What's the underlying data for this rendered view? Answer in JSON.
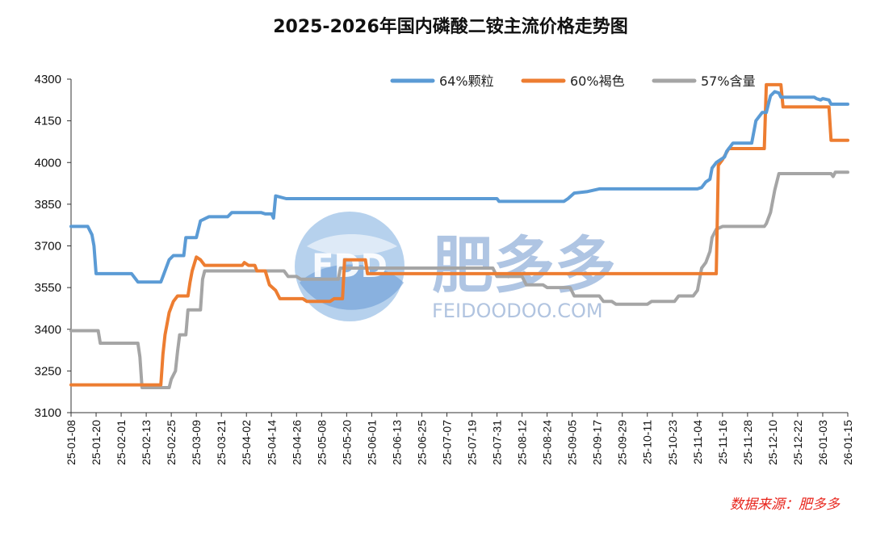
{
  "chart_data": {
    "type": "line",
    "title": "2025-2026年国内磷酸二铵主流价格走势图",
    "xlabel": "",
    "ylabel": "",
    "ylim": [
      3100,
      4300
    ],
    "yticks": [
      3100,
      3250,
      3400,
      3550,
      3700,
      3850,
      4000,
      4150,
      4300
    ],
    "x_range": [
      "25-01-08",
      "26-01-15"
    ],
    "x_ticks": [
      "25-01-08",
      "25-01-20",
      "25-02-01",
      "25-02-13",
      "25-02-25",
      "25-03-09",
      "25-03-21",
      "25-04-02",
      "25-04-14",
      "25-04-26",
      "25-05-08",
      "25-05-20",
      "25-06-01",
      "25-06-13",
      "25-06-25",
      "25-07-07",
      "25-07-19",
      "25-07-31",
      "25-08-12",
      "25-08-24",
      "25-09-05",
      "25-09-17",
      "25-09-29",
      "25-10-11",
      "25-10-23",
      "25-11-04",
      "25-11-16",
      "25-11-28",
      "25-12-10",
      "25-12-22",
      "26-01-03",
      "26-01-15"
    ],
    "grid": false,
    "legend_position": "top-right",
    "series": [
      {
        "name": "64%颗粒",
        "color": "#5b9bd5",
        "points": [
          [
            "25-01-08",
            3770
          ],
          [
            "25-01-16",
            3770
          ],
          [
            "25-01-18",
            3740
          ],
          [
            "25-01-19",
            3700
          ],
          [
            "25-01-20",
            3600
          ],
          [
            "25-02-06",
            3600
          ],
          [
            "25-02-09",
            3570
          ],
          [
            "25-02-20",
            3570
          ],
          [
            "25-02-21",
            3590
          ],
          [
            "25-02-24",
            3650
          ],
          [
            "25-02-26",
            3665
          ],
          [
            "25-03-03",
            3665
          ],
          [
            "25-03-04",
            3730
          ],
          [
            "25-03-09",
            3730
          ],
          [
            "25-03-11",
            3790
          ],
          [
            "25-03-15",
            3805
          ],
          [
            "25-03-24",
            3805
          ],
          [
            "25-03-26",
            3820
          ],
          [
            "25-04-09",
            3820
          ],
          [
            "25-04-11",
            3815
          ],
          [
            "25-04-14",
            3815
          ],
          [
            "25-04-15",
            3800
          ],
          [
            "25-04-16",
            3880
          ],
          [
            "25-04-21",
            3870
          ],
          [
            "25-07-31",
            3870
          ],
          [
            "25-08-01",
            3860
          ],
          [
            "25-09-01",
            3860
          ],
          [
            "25-09-03",
            3870
          ],
          [
            "25-09-06",
            3890
          ],
          [
            "25-09-12",
            3895
          ],
          [
            "25-09-18",
            3905
          ],
          [
            "25-11-04",
            3905
          ],
          [
            "25-11-06",
            3910
          ],
          [
            "25-11-08",
            3930
          ],
          [
            "25-11-10",
            3940
          ],
          [
            "25-11-11",
            3980
          ],
          [
            "25-11-13",
            4000
          ],
          [
            "25-11-15",
            4010
          ],
          [
            "25-11-17",
            4020
          ],
          [
            "25-11-18",
            4040
          ],
          [
            "25-11-21",
            4070
          ],
          [
            "25-11-30",
            4070
          ],
          [
            "25-12-02",
            4150
          ],
          [
            "25-12-05",
            4180
          ],
          [
            "25-12-07",
            4180
          ],
          [
            "25-12-09",
            4240
          ],
          [
            "25-12-11",
            4255
          ],
          [
            "25-12-13",
            4250
          ],
          [
            "25-12-14",
            4235
          ],
          [
            "25-12-30",
            4235
          ],
          [
            "25-12-31",
            4230
          ],
          [
            "26-01-02",
            4225
          ],
          [
            "26-01-03",
            4230
          ],
          [
            "26-01-06",
            4225
          ],
          [
            "26-01-07",
            4210
          ],
          [
            "26-01-15",
            4210
          ]
        ]
      },
      {
        "name": "60%褐色",
        "color": "#ed7d31",
        "points": [
          [
            "25-01-08",
            3200
          ],
          [
            "25-02-20",
            3200
          ],
          [
            "25-02-21",
            3310
          ],
          [
            "25-02-22",
            3380
          ],
          [
            "25-02-24",
            3460
          ],
          [
            "25-02-26",
            3500
          ],
          [
            "25-02-28",
            3520
          ],
          [
            "25-03-05",
            3520
          ],
          [
            "25-03-06",
            3570
          ],
          [
            "25-03-07",
            3610
          ],
          [
            "25-03-09",
            3660
          ],
          [
            "25-03-11",
            3650
          ],
          [
            "25-03-13",
            3630
          ],
          [
            "25-03-31",
            3630
          ],
          [
            "25-04-01",
            3640
          ],
          [
            "25-04-03",
            3630
          ],
          [
            "25-04-06",
            3630
          ],
          [
            "25-04-07",
            3610
          ],
          [
            "25-04-11",
            3610
          ],
          [
            "25-04-13",
            3560
          ],
          [
            "25-04-16",
            3540
          ],
          [
            "25-04-18",
            3510
          ],
          [
            "25-04-29",
            3510
          ],
          [
            "25-05-01",
            3500
          ],
          [
            "25-05-12",
            3500
          ],
          [
            "25-05-14",
            3510
          ],
          [
            "25-05-18",
            3510
          ],
          [
            "25-05-19",
            3650
          ],
          [
            "25-05-29",
            3650
          ],
          [
            "25-05-30",
            3600
          ],
          [
            "25-11-13",
            3600
          ],
          [
            "25-11-14",
            3990
          ],
          [
            "25-11-16",
            4010
          ],
          [
            "25-11-19",
            4050
          ],
          [
            "25-12-06",
            4050
          ],
          [
            "25-12-07",
            4280
          ],
          [
            "25-12-14",
            4280
          ],
          [
            "25-12-15",
            4200
          ],
          [
            "26-01-03",
            4200
          ],
          [
            "26-01-06",
            4200
          ],
          [
            "26-01-07",
            4080
          ],
          [
            "26-01-15",
            4080
          ]
        ]
      },
      {
        "name": "57%含量",
        "color": "#a5a5a5",
        "points": [
          [
            "25-01-08",
            3395
          ],
          [
            "25-01-21",
            3395
          ],
          [
            "25-01-22",
            3350
          ],
          [
            "25-02-09",
            3350
          ],
          [
            "25-02-10",
            3300
          ],
          [
            "25-02-11",
            3190
          ],
          [
            "25-02-24",
            3190
          ],
          [
            "25-02-25",
            3220
          ],
          [
            "25-02-27",
            3250
          ],
          [
            "25-02-28",
            3320
          ],
          [
            "25-03-01",
            3380
          ],
          [
            "25-03-04",
            3380
          ],
          [
            "25-03-05",
            3470
          ],
          [
            "25-03-11",
            3470
          ],
          [
            "25-03-12",
            3580
          ],
          [
            "25-03-13",
            3610
          ],
          [
            "25-04-20",
            3610
          ],
          [
            "25-04-22",
            3590
          ],
          [
            "25-04-26",
            3590
          ],
          [
            "25-04-28",
            3580
          ],
          [
            "25-05-16",
            3580
          ],
          [
            "25-05-17",
            3620
          ],
          [
            "25-07-29",
            3620
          ],
          [
            "25-07-31",
            3590
          ],
          [
            "25-08-12",
            3590
          ],
          [
            "25-08-14",
            3560
          ],
          [
            "25-08-22",
            3560
          ],
          [
            "25-08-24",
            3550
          ],
          [
            "25-09-04",
            3550
          ],
          [
            "25-09-06",
            3520
          ],
          [
            "25-09-18",
            3520
          ],
          [
            "25-09-20",
            3500
          ],
          [
            "25-09-24",
            3500
          ],
          [
            "25-09-26",
            3490
          ],
          [
            "25-10-11",
            3490
          ],
          [
            "25-10-13",
            3500
          ],
          [
            "25-10-24",
            3500
          ],
          [
            "25-10-26",
            3520
          ],
          [
            "25-11-02",
            3520
          ],
          [
            "25-11-04",
            3540
          ],
          [
            "25-11-06",
            3620
          ],
          [
            "25-11-08",
            3640
          ],
          [
            "25-11-10",
            3680
          ],
          [
            "25-11-11",
            3730
          ],
          [
            "25-11-13",
            3760
          ],
          [
            "25-11-16",
            3770
          ],
          [
            "25-12-06",
            3770
          ],
          [
            "25-12-07",
            3780
          ],
          [
            "25-12-09",
            3820
          ],
          [
            "25-12-11",
            3900
          ],
          [
            "25-12-13",
            3960
          ],
          [
            "26-01-07",
            3960
          ],
          [
            "26-01-08",
            3950
          ],
          [
            "26-01-09",
            3965
          ],
          [
            "26-01-15",
            3965
          ]
        ]
      }
    ],
    "source_note": "数据来源：肥多多",
    "watermark": {
      "logo": "FDD",
      "name": "肥多多",
      "url": "FEIDOODOO.COM"
    }
  }
}
